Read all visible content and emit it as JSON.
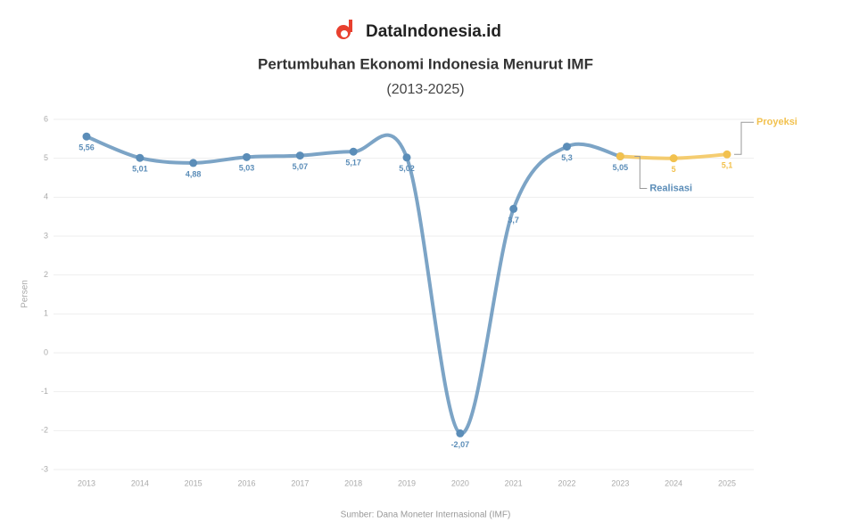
{
  "header": {
    "brand": "DataIndonesia.id"
  },
  "chart_data": {
    "type": "line",
    "title": "Pertumbuhan Ekonomi Indonesia Menurut IMF",
    "subtitle": "(2013-2025)",
    "y_label": "Persen",
    "source": "Sumber: Dana Moneter Internasional (IMF)",
    "categories": [
      "2013",
      "2014",
      "2015",
      "2016",
      "2017",
      "2018",
      "2019",
      "2020",
      "2021",
      "2022",
      "2023",
      "2024",
      "2025"
    ],
    "series": [
      {
        "name": "Realisasi",
        "color": "#5b8db8",
        "values": [
          5.56,
          5.01,
          4.88,
          5.03,
          5.07,
          5.17,
          5.02,
          -2.07,
          3.7,
          5.3,
          5.05,
          null,
          null
        ],
        "value_labels": [
          "5,56",
          "5,01",
          "4,88",
          "5,03",
          "5,07",
          "5,17",
          "5,02",
          "-2,07",
          "3,7",
          "5,3",
          "5,05",
          null,
          null
        ]
      },
      {
        "name": "Proyeksi",
        "color": "#f2c14e",
        "values": [
          null,
          null,
          null,
          null,
          null,
          null,
          null,
          null,
          null,
          null,
          5.05,
          5,
          5.1
        ],
        "value_labels": [
          null,
          null,
          null,
          null,
          null,
          null,
          null,
          null,
          null,
          null,
          null,
          "5",
          "5,1"
        ]
      }
    ],
    "ylim": [
      -3,
      6
    ],
    "yticks": [
      -3,
      -2,
      -1,
      0,
      1,
      2,
      3,
      4,
      5,
      6
    ],
    "grid": true
  }
}
